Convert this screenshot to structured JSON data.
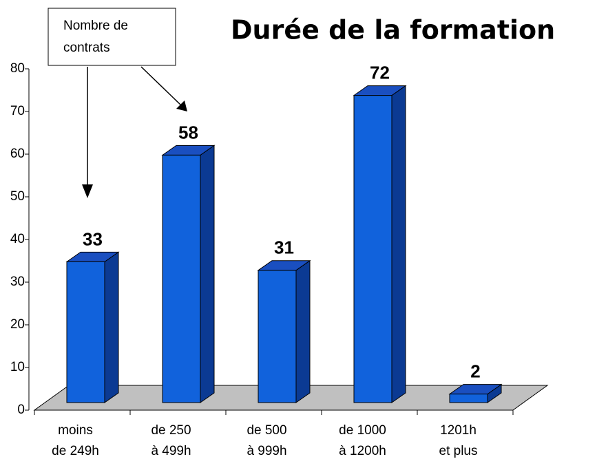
{
  "chart_data": {
    "type": "bar3d",
    "title": "Durée de la formation",
    "annotation": [
      "Nombre de",
      "contrats"
    ],
    "categories": [
      "moins\nde 249h",
      "de 250\nà 499h",
      "de 500\nà 999h",
      "de 1000\nà 1200h",
      "1201h\net plus"
    ],
    "values": [
      33,
      58,
      31,
      72,
      2
    ],
    "color": "#1162dc",
    "ylim": [
      0,
      80
    ],
    "yticks": [
      0,
      10,
      20,
      30,
      40,
      50,
      60,
      70,
      80
    ]
  }
}
